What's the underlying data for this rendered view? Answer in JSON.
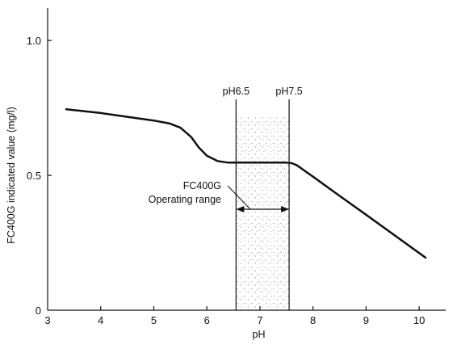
{
  "chart_data": {
    "type": "line",
    "title": "",
    "xlabel": "pH",
    "ylabel": "FC400G indicated value (mg/l)",
    "xlim": [
      3,
      10.5
    ],
    "ylim": [
      0,
      1.12
    ],
    "x_ticks": [
      3,
      4,
      5,
      6,
      7,
      8,
      9,
      10
    ],
    "x_tick_labels": [
      "3",
      "4",
      "5",
      "6",
      "7",
      "8",
      "9",
      "10"
    ],
    "y_ticks": [
      0,
      0.5,
      1.0
    ],
    "y_tick_labels": [
      "0",
      "0.5",
      "1.0"
    ],
    "grid": false,
    "series": [
      {
        "x": [
          3.35,
          4.0,
          4.5,
          5.0,
          5.3,
          5.5,
          5.7,
          5.85,
          6.0,
          6.2,
          6.4,
          6.6,
          7.0,
          7.5,
          7.6,
          7.7,
          7.8,
          8.0,
          8.5,
          9.0,
          9.5,
          10.0,
          10.12
        ],
        "y": [
          0.745,
          0.731,
          0.717,
          0.703,
          0.692,
          0.677,
          0.643,
          0.603,
          0.573,
          0.553,
          0.547,
          0.547,
          0.547,
          0.547,
          0.545,
          0.537,
          0.523,
          0.495,
          0.424,
          0.354,
          0.283,
          0.212,
          0.195
        ]
      }
    ],
    "range_band": {
      "from": 6.55,
      "to": 7.55,
      "from_label": "pH6.5",
      "to_label": "pH7.5",
      "annotation": [
        "FC400G",
        "Operating range"
      ]
    }
  }
}
